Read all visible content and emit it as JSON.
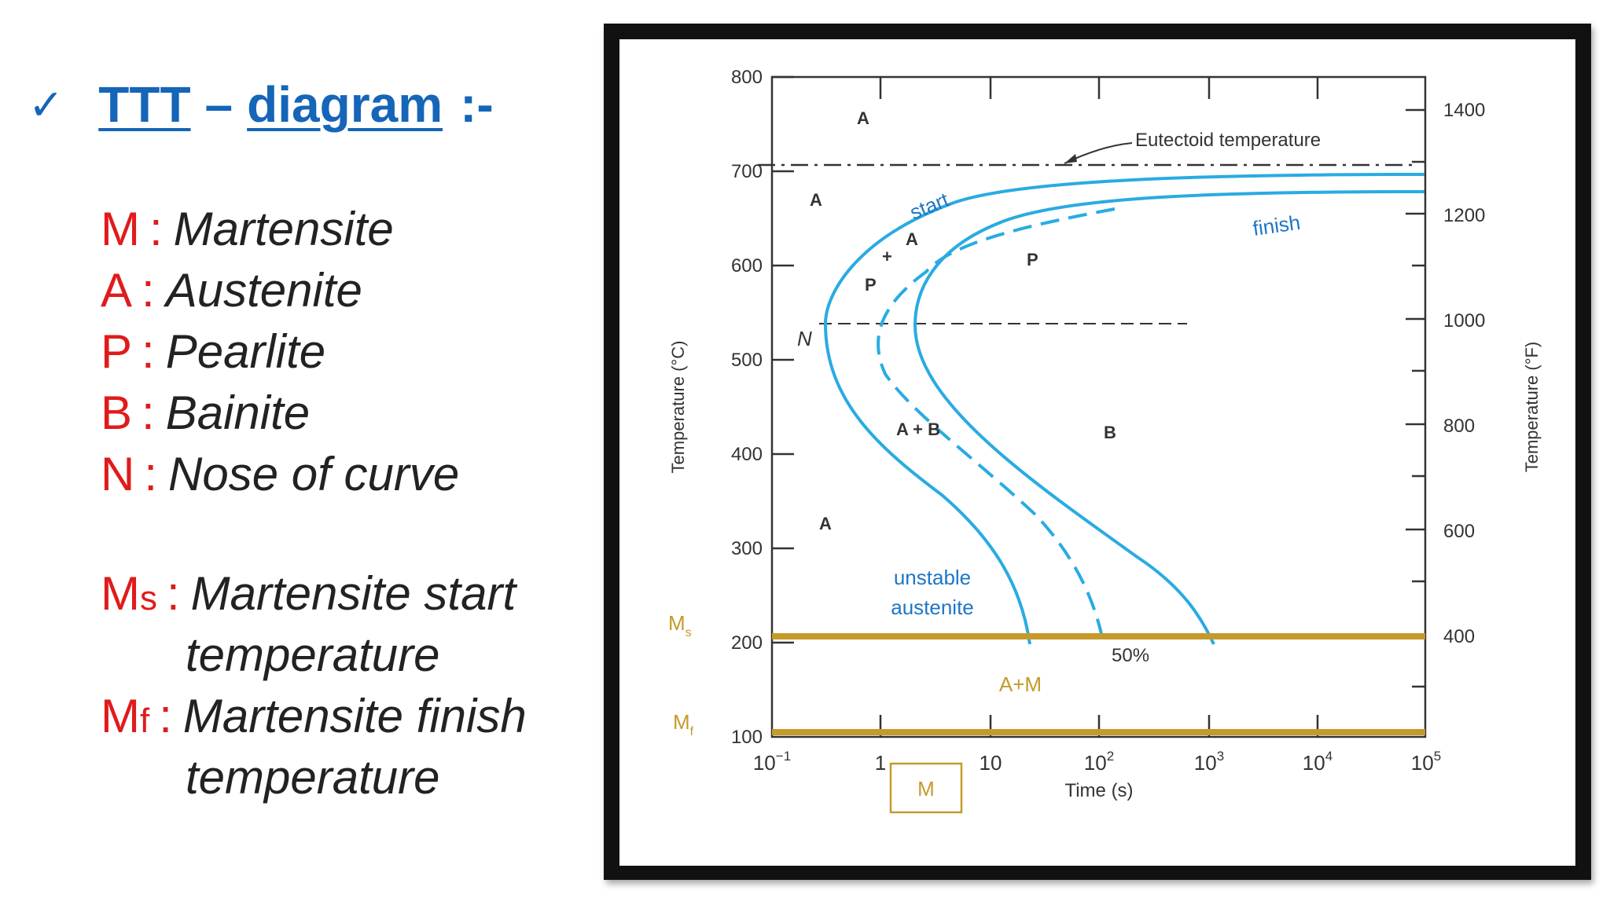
{
  "slide": {
    "check_mark": "✓",
    "title_abbr": "TTT",
    "title_dash": "–",
    "title_word": "diagram",
    "title_suffix": ":-",
    "legend": [
      {
        "abbr": "M",
        "sub": "",
        "colon": ":",
        "term": "Martensite"
      },
      {
        "abbr": "A",
        "sub": "",
        "colon": ":",
        "term": "Austenite"
      },
      {
        "abbr": "P",
        "sub": "",
        "colon": ":",
        "term": "Pearlite"
      },
      {
        "abbr": "B",
        "sub": "",
        "colon": ":",
        "term": "Bainite"
      },
      {
        "abbr": "N",
        "sub": "",
        "colon": ":",
        "term": "Nose of curve"
      },
      {
        "abbr": "M",
        "sub": "s",
        "colon": ":",
        "term": "Martensite start",
        "cont": "temperature"
      },
      {
        "abbr": "M",
        "sub": "f",
        "colon": ":",
        "term": "Martensite finish",
        "cont": "temperature"
      }
    ],
    "colors": {
      "accent_blue": "#1565b8",
      "abbr_red": "#e01b1b",
      "curve_blue": "#29abe2",
      "ms_gold": "#c49a2a"
    }
  },
  "diagram": {
    "y_left_label": "Temperature (°C)",
    "y_left_ticks": [
      "800",
      "700",
      "600",
      "500",
      "400",
      "300",
      "200",
      "100"
    ],
    "y_right_label": "Temperature (°F)",
    "y_right_ticks": [
      "1400",
      "1200",
      "1000",
      "800",
      "600",
      "400"
    ],
    "x_label": "Time (s)",
    "x_ticks": [
      {
        "base": "10",
        "exp": "−1"
      },
      {
        "base": "1",
        "exp": ""
      },
      {
        "base": "10",
        "exp": ""
      },
      {
        "base": "10",
        "exp": "2"
      },
      {
        "base": "10",
        "exp": "3"
      },
      {
        "base": "10",
        "exp": "4"
      },
      {
        "base": "10",
        "exp": "5"
      }
    ],
    "eutectoid_label": "Eutectoid temperature",
    "region_labels": {
      "a_top": "A",
      "a_left": "A",
      "a_mid": "A",
      "plus": "+",
      "p_small": "P",
      "p_big": "P",
      "a_plus_b": "A + B",
      "b": "B",
      "a_low": "A",
      "unstable_1": "unstable",
      "unstable_2": "austenite",
      "start": "start",
      "finish": "finish",
      "nose": "N",
      "fifty": "50%",
      "a_plus_m": "A+M",
      "m_box": "M"
    },
    "ms_label": {
      "base": "M",
      "sub": "s"
    },
    "mf_label": {
      "base": "M",
      "sub": "f"
    }
  }
}
